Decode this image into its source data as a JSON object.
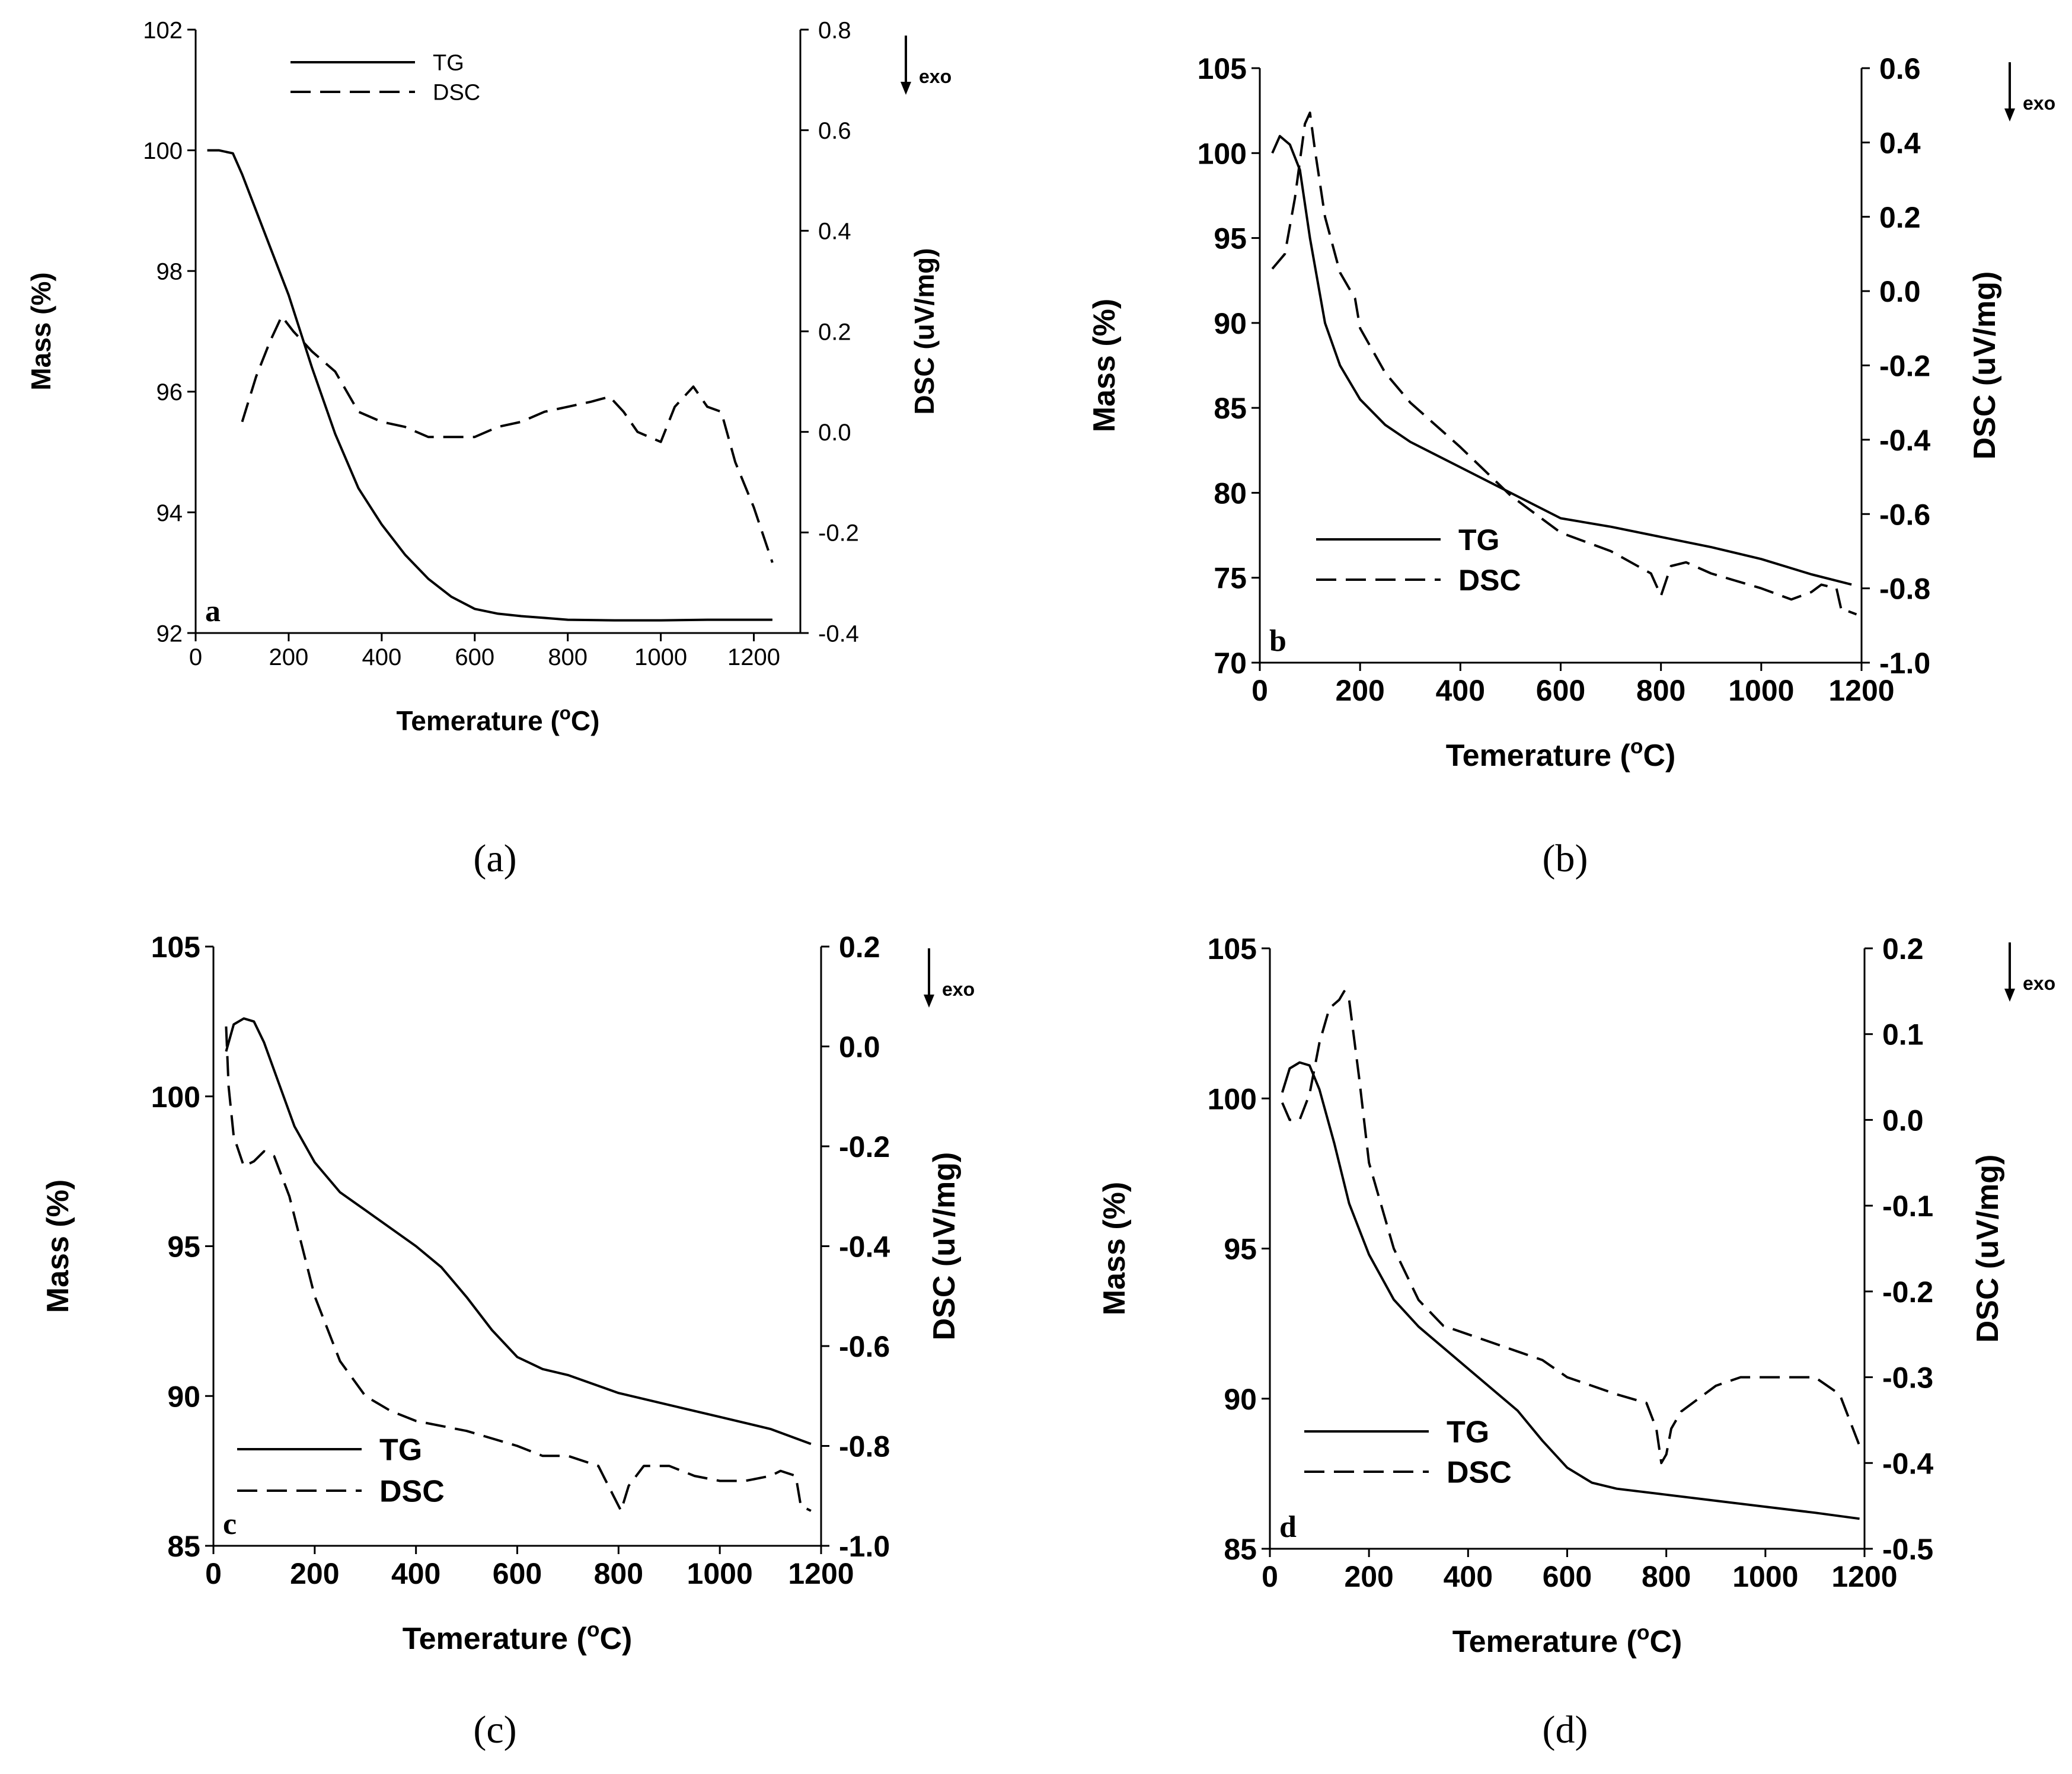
{
  "chart_data": [
    {
      "type": "line",
      "panel_tag": "a",
      "caption": "(a)",
      "xlabel": "Temerature (",
      "xlabel_degree": "o",
      "xlabel_unit": "C)",
      "ylabel": "Mass (%)",
      "y2label": "DSC (uV/mg)",
      "exo_label": "exo",
      "xlim": [
        0,
        1300
      ],
      "ylim": [
        92,
        102
      ],
      "y2lim": [
        -0.4,
        0.8
      ],
      "x_ticks": [
        0,
        200,
        400,
        600,
        800,
        1000,
        1200
      ],
      "x_tick_labels": [
        "0",
        "200",
        "400",
        "600",
        "800",
        "1000",
        "1200"
      ],
      "y_ticks": [
        92,
        94,
        96,
        98,
        100,
        102
      ],
      "y_tick_labels": [
        "92",
        "94",
        "96",
        "98",
        "100",
        "102"
      ],
      "y2_ticks": [
        -0.4,
        -0.2,
        0.0,
        0.2,
        0.4,
        0.6,
        0.8
      ],
      "y2_tick_labels": [
        "-0.4",
        "-0.2",
        "0.0",
        "0.2",
        "0.4",
        "0.6",
        "0.8"
      ],
      "legend": [
        "TG",
        "DSC"
      ],
      "legend_position": "top-left",
      "series": [
        {
          "name": "TG",
          "axis": "left",
          "style": "solid",
          "x": [
            25,
            50,
            80,
            100,
            130,
            160,
            200,
            250,
            300,
            350,
            400,
            450,
            500,
            550,
            600,
            650,
            700,
            750,
            800,
            900,
            1000,
            1100,
            1240
          ],
          "y": [
            100.0,
            100.0,
            99.95,
            99.6,
            99.0,
            98.4,
            97.6,
            96.4,
            95.3,
            94.4,
            93.8,
            93.3,
            92.9,
            92.6,
            92.4,
            92.32,
            92.28,
            92.25,
            92.22,
            92.21,
            92.21,
            92.22,
            92.22
          ]
        },
        {
          "name": "DSC",
          "axis": "right",
          "style": "dashed",
          "x": [
            100,
            130,
            160,
            185,
            210,
            250,
            300,
            350,
            400,
            450,
            500,
            550,
            600,
            650,
            700,
            750,
            800,
            850,
            890,
            920,
            950,
            1000,
            1030,
            1070,
            1100,
            1130,
            1160,
            1200,
            1240
          ],
          "y": [
            0.02,
            0.11,
            0.18,
            0.23,
            0.2,
            0.16,
            0.12,
            0.04,
            0.02,
            0.01,
            -0.01,
            -0.01,
            -0.01,
            0.01,
            0.02,
            0.04,
            0.05,
            0.06,
            0.07,
            0.04,
            0.0,
            -0.02,
            0.05,
            0.09,
            0.05,
            0.04,
            -0.06,
            -0.15,
            -0.26
          ]
        }
      ]
    },
    {
      "type": "line",
      "panel_tag": "b",
      "caption": "(b)",
      "xlabel": "Temerature (",
      "xlabel_degree": "o",
      "xlabel_unit": "C)",
      "ylabel": "Mass (%)",
      "y2label": "DSC (uV/mg)",
      "exo_label": "exo",
      "xlim": [
        0,
        1200
      ],
      "ylim": [
        70,
        105
      ],
      "y2lim": [
        -1.0,
        0.6
      ],
      "x_ticks": [
        0,
        200,
        400,
        600,
        800,
        1000,
        1200
      ],
      "x_tick_labels": [
        "0",
        "200",
        "400",
        "600",
        "800",
        "1000",
        "1200"
      ],
      "y_ticks": [
        70,
        75,
        80,
        85,
        90,
        95,
        100,
        105
      ],
      "y_tick_labels": [
        "70",
        "75",
        "80",
        "85",
        "90",
        "95",
        "100",
        "105"
      ],
      "y2_ticks": [
        -1.0,
        -0.8,
        -0.6,
        -0.4,
        -0.2,
        0.0,
        0.2,
        0.4,
        0.6
      ],
      "y2_tick_labels": [
        "-1.0",
        "-0.8",
        "-0.6",
        "-0.4",
        "-0.2",
        "0.0",
        "0.2",
        "0.4",
        "0.6"
      ],
      "legend": [
        "TG",
        "DSC"
      ],
      "legend_position": "bottom-left",
      "series": [
        {
          "name": "TG",
          "axis": "left",
          "style": "solid",
          "x": [
            25,
            40,
            60,
            80,
            100,
            130,
            160,
            200,
            250,
            300,
            400,
            500,
            600,
            700,
            800,
            900,
            1000,
            1100,
            1180
          ],
          "y": [
            100.0,
            101.0,
            100.5,
            99.0,
            95.0,
            90.0,
            87.5,
            85.5,
            84.0,
            83.0,
            81.5,
            80.0,
            78.5,
            78.0,
            77.4,
            76.8,
            76.1,
            75.2,
            74.6
          ]
        },
        {
          "name": "DSC",
          "axis": "right",
          "style": "dashed",
          "x": [
            25,
            50,
            70,
            90,
            100,
            110,
            130,
            160,
            190,
            200,
            250,
            300,
            400,
            500,
            600,
            700,
            780,
            800,
            820,
            850,
            900,
            1000,
            1060,
            1100,
            1120,
            1150,
            1160,
            1170,
            1190
          ],
          "y": [
            0.06,
            0.1,
            0.25,
            0.45,
            0.48,
            0.38,
            0.2,
            0.05,
            -0.02,
            -0.1,
            -0.22,
            -0.3,
            -0.42,
            -0.55,
            -0.65,
            -0.7,
            -0.76,
            -0.82,
            -0.74,
            -0.73,
            -0.76,
            -0.8,
            -0.83,
            -0.81,
            -0.79,
            -0.8,
            -0.86,
            -0.86,
            -0.87
          ]
        }
      ]
    },
    {
      "type": "line",
      "panel_tag": "c",
      "caption": "(c)",
      "xlabel": "Temerature (",
      "xlabel_degree": "o",
      "xlabel_unit": "C)",
      "ylabel": "Mass (%)",
      "y2label": "DSC (uV/mg)",
      "exo_label": "exo",
      "xlim": [
        0,
        1200
      ],
      "ylim": [
        85,
        105
      ],
      "y2lim": [
        -1.0,
        0.2
      ],
      "x_ticks": [
        0,
        200,
        400,
        600,
        800,
        1000,
        1200
      ],
      "x_tick_labels": [
        "0",
        "200",
        "400",
        "600",
        "800",
        "1000",
        "1200"
      ],
      "y_ticks": [
        85,
        90,
        95,
        100,
        105
      ],
      "y_tick_labels": [
        "85",
        "90",
        "95",
        "100",
        "105"
      ],
      "y2_ticks": [
        -1.0,
        -0.8,
        -0.6,
        -0.4,
        -0.2,
        0.0,
        0.2
      ],
      "y2_tick_labels": [
        "-1.0",
        "-0.8",
        "-0.6",
        "-0.4",
        "-0.2",
        "0.0",
        "0.2"
      ],
      "legend": [
        "TG",
        "DSC"
      ],
      "legend_position": "bottom-left",
      "series": [
        {
          "name": "TG",
          "axis": "left",
          "style": "solid",
          "x": [
            25,
            40,
            60,
            80,
            100,
            130,
            160,
            200,
            250,
            300,
            400,
            450,
            500,
            550,
            600,
            650,
            700,
            800,
            900,
            1000,
            1100,
            1180
          ],
          "y": [
            101.5,
            102.4,
            102.6,
            102.5,
            101.8,
            100.4,
            99.0,
            97.8,
            96.8,
            96.2,
            95.0,
            94.3,
            93.3,
            92.2,
            91.3,
            90.9,
            90.7,
            90.1,
            89.7,
            89.3,
            88.9,
            88.4
          ]
        },
        {
          "name": "DSC",
          "axis": "right",
          "style": "dashed",
          "x": [
            25,
            30,
            40,
            60,
            80,
            100,
            120,
            150,
            200,
            250,
            300,
            350,
            400,
            500,
            600,
            650,
            700,
            760,
            790,
            805,
            820,
            850,
            900,
            950,
            1000,
            1050,
            1100,
            1120,
            1150,
            1160,
            1180
          ],
          "y": [
            0.04,
            -0.08,
            -0.18,
            -0.24,
            -0.23,
            -0.21,
            -0.22,
            -0.3,
            -0.5,
            -0.63,
            -0.7,
            -0.73,
            -0.75,
            -0.77,
            -0.8,
            -0.82,
            -0.82,
            -0.84,
            -0.9,
            -0.93,
            -0.88,
            -0.84,
            -0.84,
            -0.86,
            -0.87,
            -0.87,
            -0.86,
            -0.85,
            -0.86,
            -0.92,
            -0.93
          ]
        }
      ]
    },
    {
      "type": "line",
      "panel_tag": "d",
      "caption": "(d)",
      "xlabel": "Temerature (",
      "xlabel_degree": "o",
      "xlabel_unit": "C)",
      "ylabel": "Mass (%)",
      "y2label": "DSC (uV/mg)",
      "exo_label": "exo",
      "xlim": [
        0,
        1200
      ],
      "ylim": [
        85,
        105
      ],
      "y2lim": [
        -0.5,
        0.2
      ],
      "x_ticks": [
        0,
        200,
        400,
        600,
        800,
        1000,
        1200
      ],
      "x_tick_labels": [
        "0",
        "200",
        "400",
        "600",
        "800",
        "1000",
        "1200"
      ],
      "y_ticks": [
        85,
        90,
        95,
        100,
        105
      ],
      "y_tick_labels": [
        "85",
        "90",
        "95",
        "100",
        "105"
      ],
      "y2_ticks": [
        -0.5,
        -0.4,
        -0.3,
        -0.2,
        -0.1,
        0.0,
        0.1,
        0.2
      ],
      "y2_tick_labels": [
        "-0.5",
        "-0.4",
        "-0.3",
        "-0.2",
        "-0.1",
        "0.0",
        "0.1",
        "0.2"
      ],
      "legend": [
        "TG",
        "DSC"
      ],
      "legend_position": "bottom-left",
      "series": [
        {
          "name": "TG",
          "axis": "left",
          "style": "solid",
          "x": [
            25,
            40,
            60,
            80,
            100,
            130,
            160,
            200,
            250,
            300,
            400,
            500,
            550,
            600,
            650,
            700,
            800,
            900,
            1000,
            1100,
            1190
          ],
          "y": [
            100.2,
            101.0,
            101.2,
            101.1,
            100.3,
            98.5,
            96.5,
            94.8,
            93.3,
            92.4,
            91.0,
            89.6,
            88.6,
            87.7,
            87.2,
            87.0,
            86.8,
            86.6,
            86.4,
            86.2,
            86.0
          ]
        },
        {
          "name": "DSC",
          "axis": "right",
          "style": "dashed",
          "x": [
            25,
            40,
            60,
            80,
            100,
            120,
            140,
            150,
            160,
            180,
            200,
            250,
            300,
            350,
            400,
            500,
            550,
            600,
            650,
            700,
            760,
            780,
            790,
            800,
            810,
            830,
            900,
            950,
            1000,
            1050,
            1100,
            1150,
            1190
          ],
          "y": [
            0.02,
            0.0,
            0.0,
            0.03,
            0.09,
            0.13,
            0.14,
            0.15,
            0.14,
            0.05,
            -0.05,
            -0.15,
            -0.21,
            -0.24,
            -0.25,
            -0.27,
            -0.28,
            -0.3,
            -0.31,
            -0.32,
            -0.33,
            -0.36,
            -0.4,
            -0.39,
            -0.36,
            -0.34,
            -0.31,
            -0.3,
            -0.3,
            -0.3,
            -0.3,
            -0.32,
            -0.38
          ]
        }
      ]
    }
  ]
}
